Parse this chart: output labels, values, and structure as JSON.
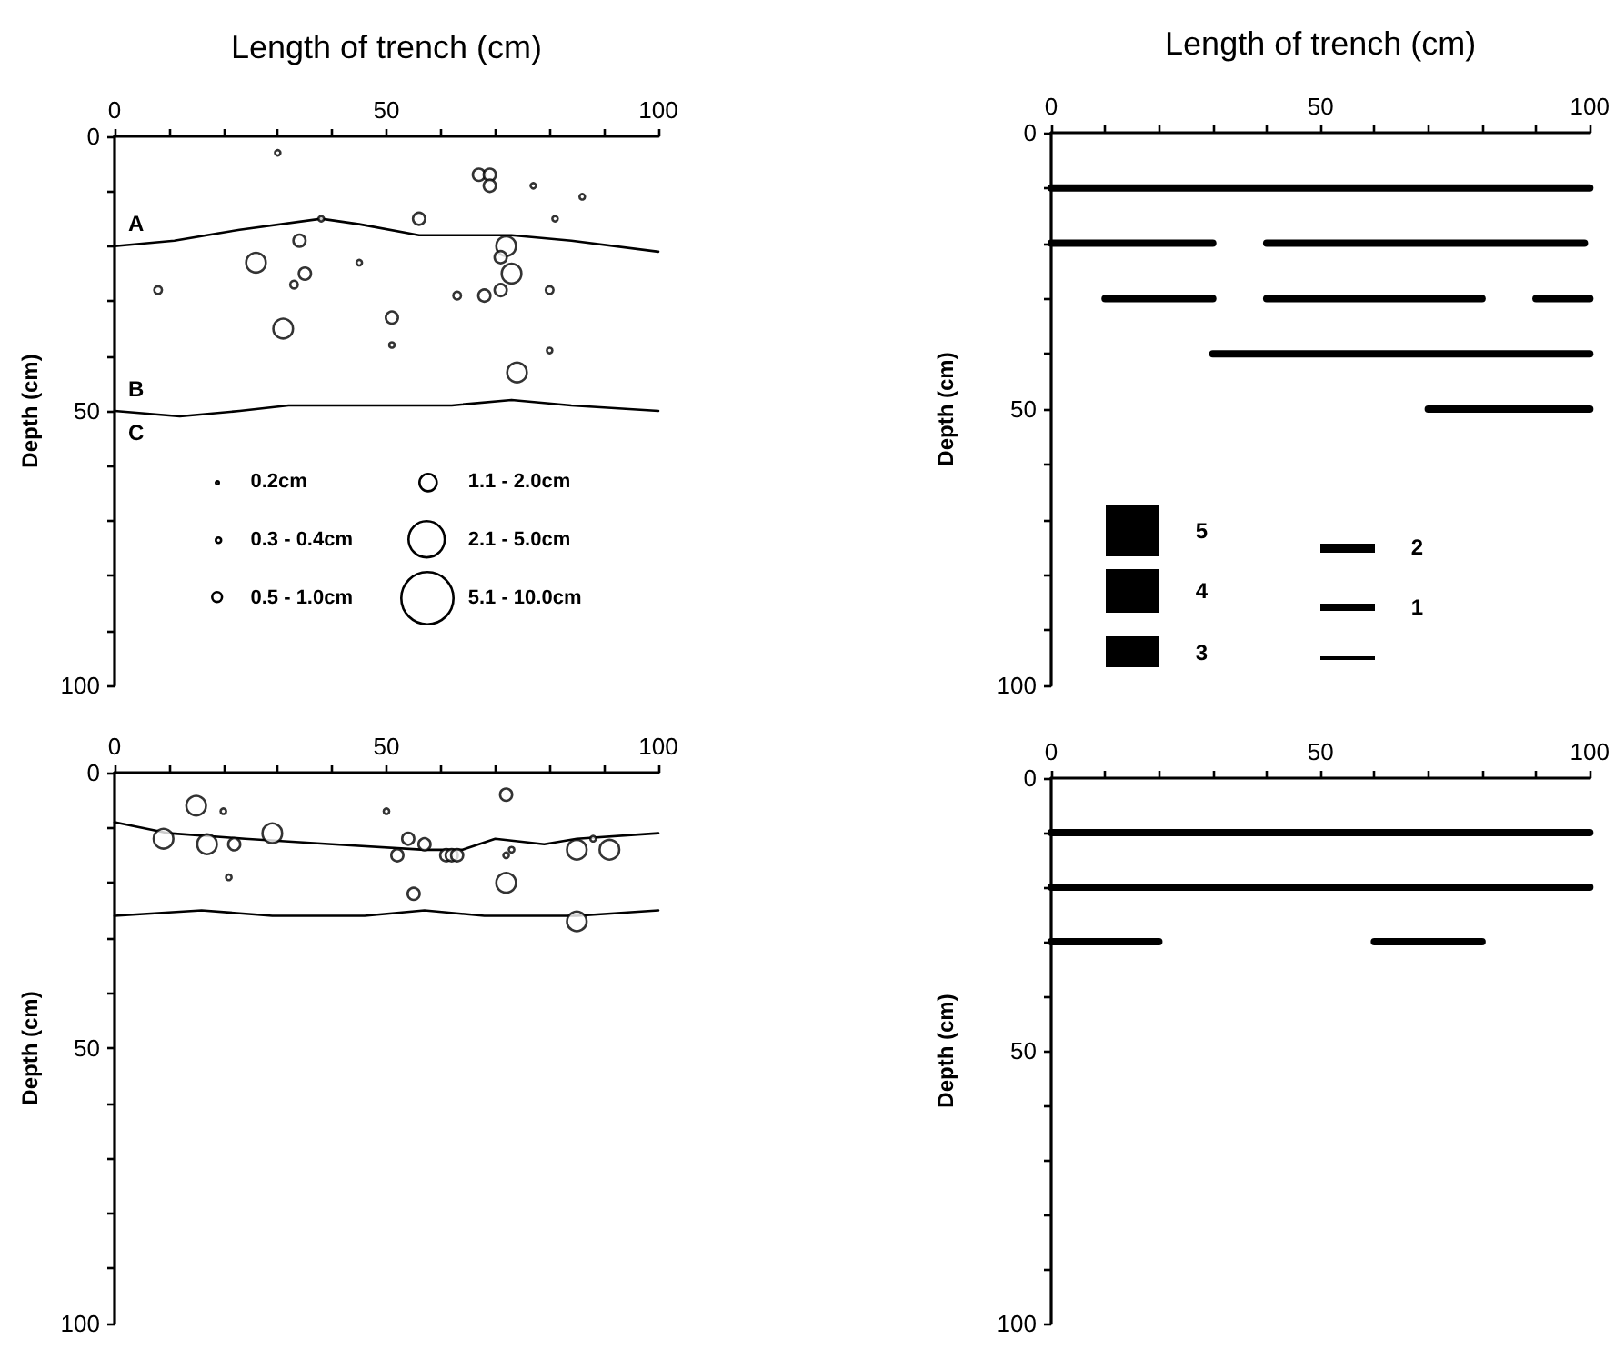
{
  "chart_data": [
    {
      "type": "bubble",
      "xlabel": "Length of trench (cm)",
      "ylabel": "Depth (cm)",
      "xlim": [
        0,
        100
      ],
      "ylim": [
        100,
        0
      ],
      "xticks": [
        0,
        {
          "value": 10,
          "label": null
        },
        {
          "value": 20,
          "label": null
        },
        {
          "value": 30,
          "label": null
        },
        {
          "value": 40,
          "label": null
        },
        50,
        {
          "value": 60,
          "label": null
        },
        {
          "value": 70,
          "label": null
        },
        {
          "value": 80,
          "label": null
        },
        {
          "value": 90,
          "label": null
        },
        100
      ],
      "yticks": [
        0,
        {
          "value": 10,
          "label": null
        },
        {
          "value": 20,
          "label": null
        },
        {
          "value": 30,
          "label": null
        },
        {
          "value": 40,
          "label": null
        },
        50,
        {
          "value": 60,
          "label": null
        },
        {
          "value": 70,
          "label": null
        },
        {
          "value": 80,
          "label": null
        },
        {
          "value": 90,
          "label": null
        },
        100
      ],
      "marker": "circle",
      "series": [
        {
          "type": "bubble",
          "color": "#000000",
          "x": [
            30,
            67,
            69,
            69,
            77,
            86,
            81,
            56,
            38,
            34,
            72,
            71,
            26,
            45,
            35,
            73,
            33,
            8,
            80,
            63,
            68,
            71,
            51,
            31,
            51,
            80,
            74
          ],
          "values": [
            3,
            7,
            7,
            9,
            9,
            11,
            15,
            15,
            15,
            19,
            20,
            22,
            23,
            23,
            25,
            25,
            27,
            28,
            28,
            29,
            29,
            28,
            33,
            35,
            38,
            39,
            43
          ],
          "sizes": [
            0.01,
            0.05,
            0.05,
            0.05,
            0.01,
            0.01,
            0.01,
            0.05,
            0.01,
            0.05,
            0.13,
            0.05,
            0.13,
            0.01,
            0.05,
            0.13,
            0.02,
            0.02,
            0.02,
            0.02,
            0.05,
            0.05,
            0.05,
            0.13,
            0.01,
            0.01,
            0.13
          ]
        },
        {
          "type": "line",
          "color": "#000000",
          "marker": "none",
          "x": [
            0,
            11,
            23,
            38,
            45,
            56,
            73,
            84,
            100
          ],
          "values": [
            20,
            19,
            17,
            15,
            16,
            18,
            18,
            19,
            21
          ]
        },
        {
          "type": "line",
          "color": "#000000",
          "marker": "none",
          "x": [
            0,
            12,
            23,
            32,
            45,
            62,
            73,
            84,
            100
          ],
          "values": [
            50,
            51,
            50,
            49,
            49,
            49,
            48,
            49,
            50
          ]
        }
      ],
      "size_legend": [
        {
          "value": 0.01,
          "label": "0.2cm"
        },
        {
          "value": 0.02,
          "label": "0.3 - 0.4cm"
        },
        {
          "value": 0.05,
          "label": "0.5 - 1.0cm"
        },
        {
          "value": 0.13,
          "label": "1.1 - 2.0cm"
        },
        {
          "value": 0.5,
          "label": "2.1 - 5.0cm"
        },
        {
          "value": 1,
          "label": "5.1 - 10.0cm"
        }
      ],
      "annotations": [
        "A",
        "B",
        "C"
      ]
    },
    {
      "type": "line",
      "xlabel": "Length of trench (cm)",
      "ylabel": "Depth (cm)",
      "xlim": [
        0,
        100
      ],
      "ylim": [
        100,
        0
      ],
      "xticks": [
        0,
        {
          "value": 10,
          "label": null
        },
        {
          "value": 20,
          "label": null
        },
        {
          "value": 30,
          "label": null
        },
        {
          "value": 40,
          "label": null
        },
        50,
        {
          "value": 60,
          "label": null
        },
        {
          "value": 70,
          "label": null
        },
        {
          "value": 80,
          "label": null
        },
        {
          "value": 90,
          "label": null
        },
        100
      ],
      "yticks": [
        0,
        {
          "value": 10,
          "label": null
        },
        {
          "value": 20,
          "label": null
        },
        {
          "value": 30,
          "label": null
        },
        {
          "value": 40,
          "label": null
        },
        50,
        {
          "value": 60,
          "label": null
        },
        {
          "value": 70,
          "label": null
        },
        {
          "value": 80,
          "label": null
        },
        {
          "value": 90,
          "label": null
        },
        100
      ],
      "marker": "none",
      "series": [
        {
          "color": "#000000",
          "x": [
            0,
            100
          ],
          "values": [
            10,
            10
          ]
        },
        {
          "color": "#000000",
          "x": [
            0,
            30
          ],
          "values": [
            20,
            20
          ]
        },
        {
          "color": "#000000",
          "x": [
            40,
            99
          ],
          "values": [
            20,
            20
          ]
        },
        {
          "color": "#000000",
          "x": [
            10,
            30
          ],
          "values": [
            30,
            30
          ]
        },
        {
          "color": "#000000",
          "x": [
            40,
            80
          ],
          "values": [
            30,
            30
          ]
        },
        {
          "color": "#000000",
          "x": [
            90,
            100
          ],
          "values": [
            30,
            30
          ]
        },
        {
          "color": "#000000",
          "x": [
            30,
            100
          ],
          "values": [
            40,
            40
          ]
        },
        {
          "color": "#000000",
          "x": [
            70,
            100
          ],
          "values": [
            50,
            50
          ]
        }
      ],
      "annotations": [
        "5",
        "4",
        "3",
        "2",
        "1"
      ]
    },
    {
      "type": "bubble",
      "ylabel": "Depth (cm)",
      "xlim": [
        0,
        100
      ],
      "ylim": [
        100,
        0
      ],
      "xticks": [
        0,
        {
          "value": 10,
          "label": null
        },
        {
          "value": 20,
          "label": null
        },
        {
          "value": 30,
          "label": null
        },
        {
          "value": 40,
          "label": null
        },
        50,
        {
          "value": 60,
          "label": null
        },
        {
          "value": 70,
          "label": null
        },
        {
          "value": 80,
          "label": null
        },
        {
          "value": 90,
          "label": null
        },
        100
      ],
      "yticks": [
        0,
        {
          "value": 10,
          "label": null
        },
        {
          "value": 20,
          "label": null
        },
        {
          "value": 30,
          "label": null
        },
        {
          "value": 40,
          "label": null
        },
        50,
        {
          "value": 60,
          "label": null
        },
        {
          "value": 70,
          "label": null
        },
        {
          "value": 80,
          "label": null
        },
        {
          "value": 90,
          "label": null
        },
        100
      ],
      "marker": "circle",
      "series": [
        {
          "type": "bubble",
          "color": "#000000",
          "x": [
            15,
            20,
            9,
            17,
            22,
            29,
            21,
            50,
            54,
            52,
            57,
            55,
            61,
            62,
            63,
            72,
            72,
            73,
            72,
            85,
            88,
            91,
            85
          ],
          "values": [
            6,
            7,
            12,
            13,
            13,
            11,
            19,
            7,
            12,
            15,
            13,
            22,
            15,
            15,
            15,
            4,
            15,
            14,
            20,
            14,
            12,
            14,
            27
          ],
          "sizes": [
            1,
            0.08,
            1,
            1,
            0.38,
            1,
            0.08,
            0.08,
            0.38,
            0.38,
            0.38,
            0.38,
            0.38,
            0.38,
            0.38,
            0.38,
            0.08,
            0.08,
            1,
            1,
            0.08,
            1,
            1
          ]
        },
        {
          "type": "line",
          "color": "#000000",
          "marker": "none",
          "x": [
            0,
            10,
            24,
            40,
            57,
            64,
            70,
            79,
            85,
            100
          ],
          "values": [
            9,
            11,
            12,
            13,
            14,
            14,
            12,
            13,
            12,
            11
          ]
        },
        {
          "type": "line",
          "color": "#000000",
          "marker": "none",
          "x": [
            0,
            16,
            29,
            46,
            57,
            68,
            85,
            100
          ],
          "values": [
            26,
            25,
            26,
            26,
            25,
            26,
            26,
            25
          ]
        }
      ]
    },
    {
      "type": "line",
      "ylabel": "Depth (cm)",
      "xlim": [
        0,
        100
      ],
      "ylim": [
        100,
        0
      ],
      "xticks": [
        0,
        {
          "value": 10,
          "label": null
        },
        {
          "value": 20,
          "label": null
        },
        {
          "value": 30,
          "label": null
        },
        {
          "value": 40,
          "label": null
        },
        50,
        {
          "value": 60,
          "label": null
        },
        {
          "value": 70,
          "label": null
        },
        {
          "value": 80,
          "label": null
        },
        {
          "value": 90,
          "label": null
        },
        100
      ],
      "yticks": [
        0,
        {
          "value": 10,
          "label": null
        },
        {
          "value": 20,
          "label": null
        },
        {
          "value": 30,
          "label": null
        },
        {
          "value": 40,
          "label": null
        },
        50,
        {
          "value": 60,
          "label": null
        },
        {
          "value": 70,
          "label": null
        },
        {
          "value": 80,
          "label": null
        },
        {
          "value": 90,
          "label": null
        },
        100
      ],
      "marker": "none",
      "series": [
        {
          "color": "#000000",
          "x": [
            0,
            100
          ],
          "values": [
            10,
            10
          ]
        },
        {
          "color": "#000000",
          "x": [
            0,
            100
          ],
          "values": [
            20,
            20
          ]
        },
        {
          "color": "#000000",
          "x": [
            0,
            20
          ],
          "values": [
            30,
            30
          ]
        },
        {
          "color": "#000000",
          "x": [
            60,
            80
          ],
          "values": [
            30,
            30
          ]
        }
      ]
    }
  ]
}
